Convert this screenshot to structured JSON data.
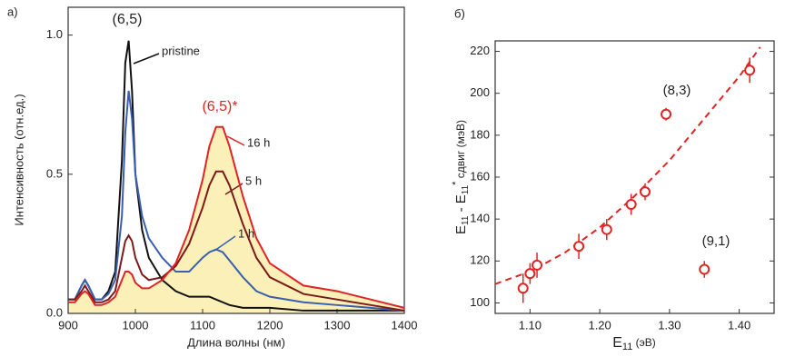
{
  "chart_data": [
    {
      "type": "line",
      "panel": "а)",
      "xlabel": "Длина волны (нм)",
      "ylabel": "Интенсивность (отн.ед.)",
      "x": [
        900,
        910,
        920,
        925,
        930,
        940,
        950,
        960,
        970,
        980,
        985,
        990,
        995,
        1000,
        1010,
        1020,
        1040,
        1060,
        1080,
        1100,
        1110,
        1120,
        1130,
        1140,
        1160,
        1180,
        1200,
        1250,
        1300,
        1350,
        1400
      ],
      "series": [
        {
          "name": "pristine",
          "color": "#111111",
          "values": [
            0.05,
            0.05,
            0.1,
            0.12,
            0.1,
            0.05,
            0.05,
            0.08,
            0.15,
            0.55,
            0.9,
            0.98,
            0.8,
            0.5,
            0.3,
            0.2,
            0.12,
            0.08,
            0.06,
            0.06,
            0.06,
            0.05,
            0.04,
            0.03,
            0.02,
            0.02,
            0.02,
            0.01,
            0.01,
            0.01,
            0.01
          ]
        },
        {
          "name": "1 h",
          "color": "#3a5fb0",
          "values": [
            0.05,
            0.05,
            0.1,
            0.12,
            0.1,
            0.05,
            0.05,
            0.07,
            0.12,
            0.35,
            0.65,
            0.8,
            0.7,
            0.5,
            0.35,
            0.27,
            0.2,
            0.15,
            0.15,
            0.2,
            0.22,
            0.23,
            0.22,
            0.19,
            0.13,
            0.08,
            0.06,
            0.04,
            0.03,
            0.02,
            0.01
          ]
        },
        {
          "name": "5 h",
          "color": "#7a1a1a",
          "values": [
            0.05,
            0.05,
            0.08,
            0.1,
            0.08,
            0.04,
            0.04,
            0.05,
            0.08,
            0.2,
            0.26,
            0.28,
            0.26,
            0.2,
            0.14,
            0.12,
            0.13,
            0.17,
            0.25,
            0.38,
            0.46,
            0.51,
            0.51,
            0.46,
            0.32,
            0.2,
            0.13,
            0.07,
            0.05,
            0.03,
            0.01
          ]
        },
        {
          "name": "16 h",
          "color": "#e02424",
          "fill": "#fbf0b8",
          "values": [
            0.04,
            0.04,
            0.07,
            0.08,
            0.07,
            0.03,
            0.03,
            0.04,
            0.06,
            0.12,
            0.15,
            0.15,
            0.14,
            0.11,
            0.09,
            0.09,
            0.12,
            0.18,
            0.3,
            0.48,
            0.6,
            0.67,
            0.67,
            0.6,
            0.42,
            0.27,
            0.18,
            0.1,
            0.08,
            0.05,
            0.02
          ]
        }
      ],
      "annotations": [
        {
          "text": "(6,5)",
          "color": "#222222"
        },
        {
          "text": "(6,5)*",
          "color": "#e02424"
        }
      ],
      "xlim": [
        900,
        1400
      ],
      "xticks": [
        900,
        1000,
        1100,
        1200,
        1300,
        1400
      ],
      "ylim": [
        0,
        1.1
      ],
      "yticks": [
        {
          "value": 0,
          "label": "0.0"
        },
        0.5,
        {
          "value": 1,
          "label": "1.0"
        }
      ]
    },
    {
      "type": "scatter",
      "panel": "б)",
      "color": "#e02424",
      "xlabel": [
        "E",
        "11",
        " (эВ)"
      ],
      "ylabel": [
        "E",
        "11",
        " - E",
        "11",
        "*",
        " сдвиг (мэВ)"
      ],
      "x": [
        1.09,
        1.1,
        1.11,
        1.17,
        1.21,
        1.245,
        1.265,
        1.295,
        1.35,
        1.415
      ],
      "values": [
        107,
        114,
        118,
        127,
        135,
        147,
        153,
        190,
        116,
        211
      ],
      "errors": [
        7,
        5,
        6,
        6,
        5,
        5,
        4,
        3,
        4,
        6
      ],
      "fit": {
        "x": [
          1.05,
          1.1,
          1.15,
          1.2,
          1.25,
          1.3,
          1.35,
          1.4,
          1.43
        ],
        "values": [
          109,
          115,
          124,
          136,
          151,
          168,
          188,
          208,
          222
        ]
      },
      "annotations": [
        {
          "text": "(8,3)",
          "color": "#222222"
        },
        {
          "text": "(9,1)",
          "color": "#222222"
        }
      ],
      "xlim": [
        1.05,
        1.45
      ],
      "xticks": [
        {
          "value": 1.1,
          "label": "1.10"
        },
        {
          "value": 1.2,
          "label": "1.20"
        },
        {
          "value": 1.3,
          "label": "1.30"
        },
        {
          "value": 1.4,
          "label": "1.40"
        }
      ],
      "ylim": [
        95,
        225
      ],
      "yticks": [
        100,
        120,
        140,
        160,
        180,
        200,
        220
      ]
    }
  ]
}
